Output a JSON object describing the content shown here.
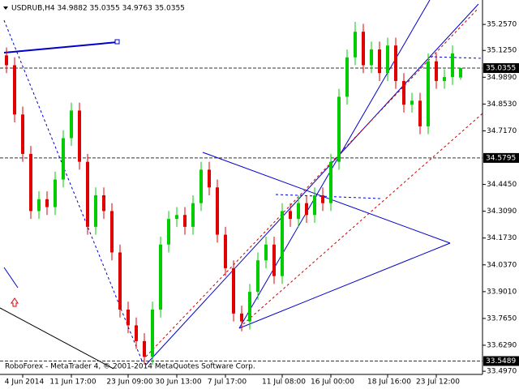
{
  "chart_data": {
    "type": "candlestick",
    "title": "USDRUB,H4 34.9882 35.0355 34.9763 35.0355",
    "footer": "RoboForex - MetaTrader 4, © 2001-2014 MetaQuotes Software Corp.",
    "up_color": "#00cc00",
    "down_color": "#e00000",
    "categories": [
      null,
      null,
      "4 Jun 2014",
      null,
      null,
      null,
      null,
      null,
      "11 Jun 17:00",
      null,
      null,
      null,
      null,
      null,
      null,
      "23 Jun 09:00",
      null,
      null,
      null,
      null,
      null,
      "30 Jun 13:00",
      null,
      null,
      null,
      null,
      null,
      "7 Jul 17:00",
      null,
      null,
      null,
      null,
      null,
      null,
      "11 Jul 08:00",
      null,
      null,
      null,
      null,
      null,
      "16 Jul 00:00",
      null,
      null,
      null,
      null,
      null,
      null,
      "18 Jul 16:00",
      null,
      null,
      null,
      null,
      null,
      "23 Jul 12:00",
      null,
      null,
      null
    ],
    "open": [
      35.1,
      35.05,
      34.8,
      34.6,
      34.31,
      34.37,
      34.33,
      34.47,
      34.68,
      34.82,
      34.56,
      34.23,
      34.39,
      34.31,
      34.1,
      33.81,
      33.73,
      33.65,
      33.57,
      33.81,
      34.14,
      34.27,
      34.29,
      34.23,
      34.35,
      34.52,
      34.43,
      34.19,
      34.02,
      33.79,
      33.75,
      33.9,
      34.06,
      34.14,
      33.98,
      34.31,
      34.27,
      34.35,
      34.29,
      34.39,
      34.35,
      34.56,
      34.89,
      35.09,
      35.22,
      35.05,
      35.13,
      35.01,
      35.15,
      34.97,
      34.85,
      34.87,
      34.74,
      35.07,
      34.97,
      34.99,
      34.9882
    ],
    "high": [
      35.14,
      35.09,
      34.84,
      34.64,
      34.41,
      34.41,
      34.51,
      34.72,
      34.86,
      34.86,
      34.6,
      34.43,
      34.43,
      34.35,
      34.14,
      33.85,
      33.77,
      33.69,
      33.85,
      34.18,
      34.31,
      34.33,
      34.33,
      34.39,
      34.56,
      34.56,
      34.47,
      34.23,
      34.06,
      33.83,
      33.94,
      34.1,
      34.18,
      34.18,
      34.35,
      34.35,
      34.39,
      34.39,
      34.43,
      34.43,
      34.6,
      34.93,
      35.13,
      35.27,
      35.26,
      35.17,
      35.17,
      35.19,
      35.19,
      35.01,
      34.91,
      34.91,
      35.11,
      35.11,
      35.03,
      35.15,
      35.0355
    ],
    "low": [
      35.01,
      34.76,
      34.56,
      34.27,
      34.27,
      34.29,
      34.29,
      34.43,
      34.64,
      34.52,
      34.19,
      34.19,
      34.27,
      34.06,
      33.77,
      33.69,
      33.61,
      33.53,
      33.53,
      33.77,
      34.1,
      34.23,
      34.19,
      34.19,
      34.31,
      34.39,
      34.15,
      33.98,
      33.75,
      33.7,
      33.71,
      33.86,
      34.02,
      33.94,
      33.94,
      34.23,
      34.23,
      34.25,
      34.25,
      34.31,
      34.31,
      34.52,
      34.85,
      35.05,
      35.01,
      35.01,
      34.97,
      34.97,
      34.93,
      34.81,
      34.81,
      34.7,
      34.7,
      34.93,
      34.93,
      34.95,
      34.9763
    ],
    "close": [
      35.05,
      34.8,
      34.6,
      34.31,
      34.37,
      34.33,
      34.47,
      34.68,
      34.82,
      34.56,
      34.23,
      34.39,
      34.31,
      34.1,
      33.81,
      33.73,
      33.65,
      33.57,
      33.81,
      34.14,
      34.27,
      34.29,
      34.23,
      34.35,
      34.52,
      34.43,
      34.19,
      34.02,
      33.79,
      33.75,
      33.9,
      34.06,
      34.14,
      33.98,
      34.31,
      34.27,
      34.35,
      34.29,
      34.39,
      34.35,
      34.56,
      34.89,
      35.09,
      35.22,
      35.05,
      35.13,
      35.01,
      35.15,
      34.97,
      34.85,
      34.87,
      34.74,
      35.07,
      34.97,
      34.99,
      35.11,
      35.0355
    ],
    "ylim": [
      33.481,
      35.381
    ],
    "yticks": [
      {
        "value": 35.257,
        "label": "35.2570"
      },
      {
        "value": 35.125,
        "label": "35.1250"
      },
      {
        "value": 34.989,
        "label": "34.9890"
      },
      {
        "value": 34.853,
        "label": "34.8530"
      },
      {
        "value": 34.717,
        "label": "34.7170"
      },
      {
        "value": 34.445,
        "label": "34.4450"
      },
      {
        "value": 34.309,
        "label": "34.3090"
      },
      {
        "value": 34.173,
        "label": "34.1730"
      },
      {
        "value": 34.037,
        "label": "34.0370"
      },
      {
        "value": 33.901,
        "label": "33.9010"
      },
      {
        "value": 33.765,
        "label": "33.7650"
      },
      {
        "value": 33.629,
        "label": "33.6290"
      },
      {
        "value": 33.497,
        "label": "33.4970"
      }
    ],
    "levels": [
      35.0355,
      34.5795,
      33.5489
    ]
  }
}
